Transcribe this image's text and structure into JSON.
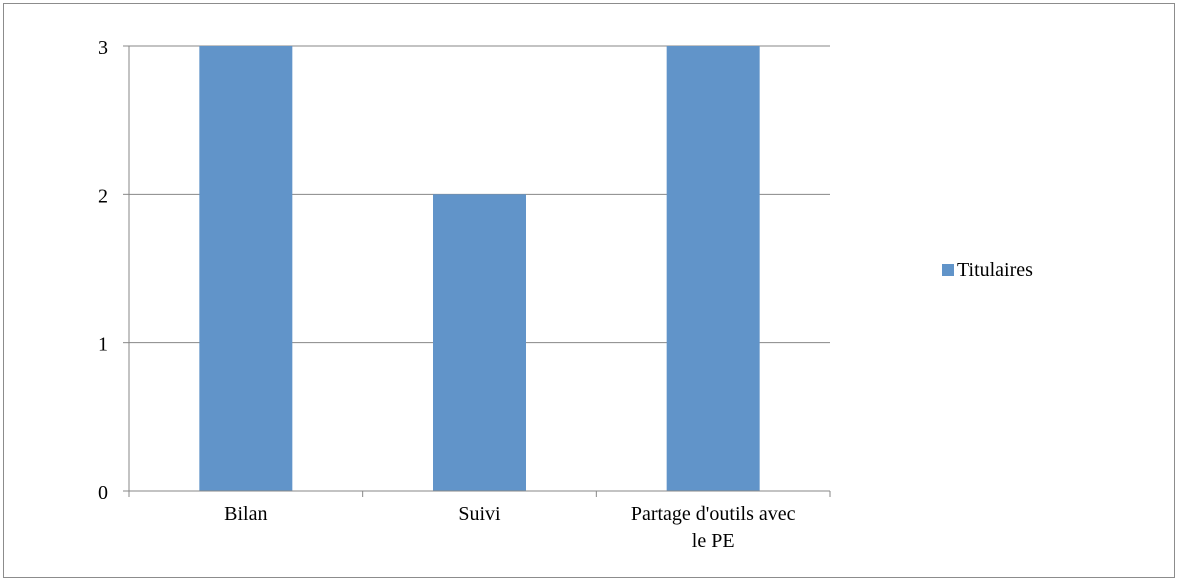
{
  "chart_data": {
    "type": "bar",
    "categories": [
      [
        "Bilan"
      ],
      [
        "Suivi"
      ],
      [
        "Partage d'outils avec",
        "le PE"
      ]
    ],
    "series": [
      {
        "name": "Titulaires",
        "values": [
          3,
          2,
          3
        ],
        "color": "#6194c9"
      }
    ],
    "ylim": [
      0,
      3
    ],
    "yticks": [
      0,
      1,
      2,
      3
    ],
    "grid": true,
    "legend_position": "right",
    "gridline_color": "#878787",
    "axis_color": "#878787"
  }
}
